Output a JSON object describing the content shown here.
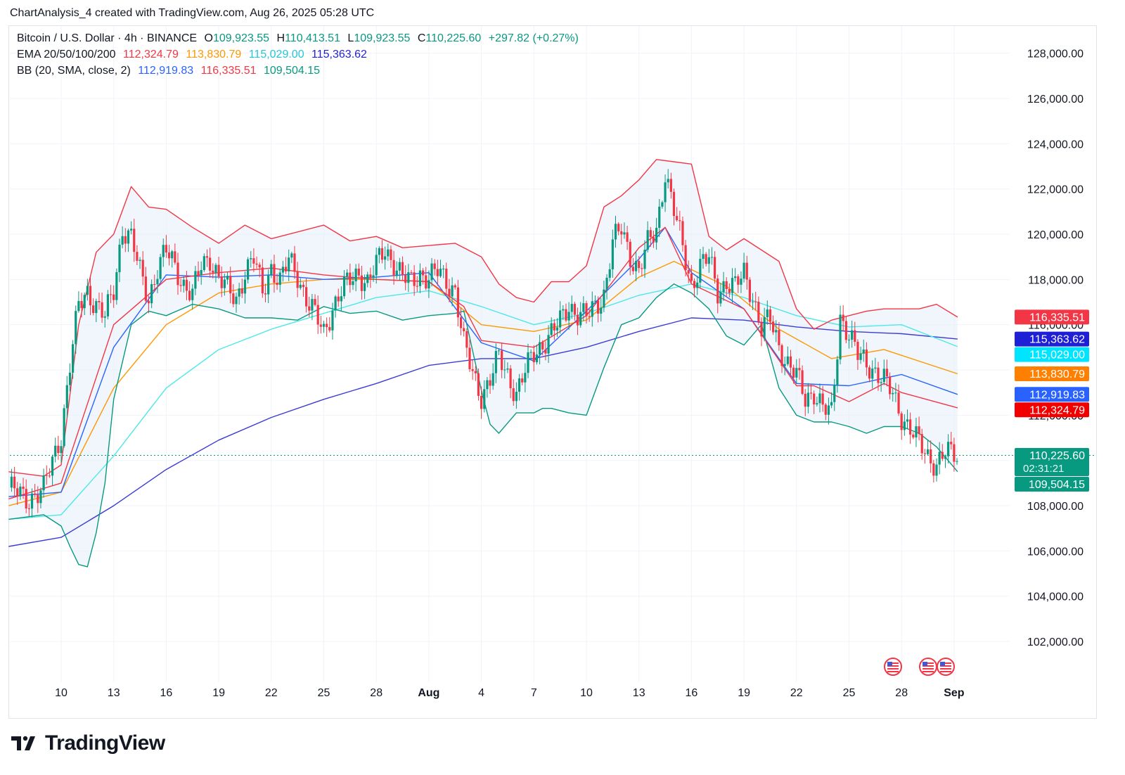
{
  "header": {
    "text": "ChartAnalysis_4 created with TradingView.com, Aug 26, 2025 05:28 UTC"
  },
  "legend": {
    "symbol": "Bitcoin / U.S. Dollar · 4h · BINANCE",
    "o_label": "O",
    "o_value": "109,923.55",
    "h_label": "H",
    "h_value": "110,413.51",
    "l_label": "L",
    "l_value": "109,923.55",
    "c_label": "C",
    "c_value": "110,225.60",
    "change": "+297.82 (+0.27%)",
    "ema_label": "EMA 20/50/100/200",
    "ema20": "112,324.79",
    "ema50": "113,830.79",
    "ema100": "115,029.00",
    "ema200": "115,363.62",
    "bb_label": "BB (20, SMA, close, 2)",
    "bb_basis": "112,919.83",
    "bb_upper": "116,335.51",
    "bb_lower": "109,504.15"
  },
  "colors": {
    "up": "#089981",
    "down": "#f23645",
    "ema20": "#f23645",
    "ema50": "#ff9800",
    "ema100": "#4de8e8",
    "ema200": "#3b3bd6",
    "bb_basis": "#2962ff",
    "bb_upper": "#f23645",
    "bb_lower": "#089981",
    "bb_fill": "#e3effa",
    "grid": "#f0f3fa",
    "axis_text": "#131722"
  },
  "price_labels": [
    {
      "text": "116,335.51",
      "value": 116335.51,
      "color": "#f23645"
    },
    {
      "text": "115,363.62",
      "value": 115363.62,
      "color": "#1f1fd6"
    },
    {
      "text": "115,029.00",
      "value": 115029.0,
      "color": "#00e5ff"
    },
    {
      "text": "113,830.79",
      "value": 113830.79,
      "color": "#ff8000"
    },
    {
      "text": "112,919.83",
      "value": 112919.83,
      "color": "#2962ff"
    },
    {
      "text": "112,324.79",
      "value": 112324.79,
      "color": "#f20000"
    },
    {
      "text": "110,225.60",
      "value": 110225.6,
      "color": "#089981",
      "countdown": "02:31:21"
    },
    {
      "text": "109,504.15",
      "value": 109504.15,
      "color": "#089981"
    }
  ],
  "chart_data": {
    "type": "line",
    "title": "Bitcoin / U.S. Dollar · 4h · BINANCE",
    "xlabel": "",
    "ylabel": "",
    "ylim": [
      100200,
      129200
    ],
    "y_ticks": [
      102000,
      104000,
      106000,
      108000,
      110000,
      112000,
      114000,
      116000,
      118000,
      120000,
      122000,
      124000,
      126000,
      128000
    ],
    "y_tick_labels": [
      "102,000.00",
      "104,000.00",
      "106,000.00",
      "108,000.00",
      "110,000.00",
      "112,000.00",
      "114,000.00",
      "116,000.00",
      "118,000.00",
      "120,000.00",
      "122,000.00",
      "124,000.00",
      "126,000.00",
      "128,000.00"
    ],
    "x_tick_labels": [
      "10",
      "13",
      "16",
      "19",
      "22",
      "25",
      "28",
      "Aug",
      "4",
      "7",
      "10",
      "13",
      "16",
      "19",
      "22",
      "25",
      "28",
      "Sep"
    ],
    "grid": true,
    "legend": "top-left",
    "x_days": [
      0,
      3,
      6,
      9,
      12,
      15,
      18,
      21,
      24,
      27,
      30,
      33,
      36,
      39,
      42,
      45,
      48,
      51
    ],
    "last_price": 110225.6,
    "series": [
      {
        "name": "Bitcoin / U.S. Dollar",
        "x": [
          -3,
          -2,
          -1,
          0,
          0.5,
          1,
          1.5,
          2,
          2.5,
          3,
          3.5,
          4,
          4.5,
          5,
          5.5,
          6,
          6.5,
          7,
          7.5,
          8,
          8.5,
          9,
          9.5,
          10,
          10.5,
          11,
          11.5,
          12,
          12.5,
          13,
          13.5,
          14,
          14.5,
          15,
          15.5,
          16,
          16.5,
          17,
          17.5,
          18,
          18.5,
          19,
          19.5,
          20,
          20.5,
          21,
          21.5,
          22,
          22.5,
          23,
          23.5,
          24,
          24.5,
          25,
          25.5,
          26,
          26.5,
          27,
          27.5,
          28,
          28.5,
          29,
          29.5,
          30,
          30.5,
          31,
          31.5,
          32,
          32.5,
          33,
          33.5,
          34,
          34.5,
          35,
          35.5,
          36,
          36.5,
          37,
          37.5,
          38,
          38.5,
          39,
          39.5,
          40,
          40.5,
          41,
          41.5,
          42,
          42.5,
          43,
          43.5,
          44,
          44.5,
          45,
          45.5,
          46,
          46.5,
          47,
          47.5,
          48,
          48.5,
          49,
          49.5,
          50,
          50.5,
          51,
          51.2
        ],
        "values": [
          108800,
          108300,
          108700,
          111200,
          114200,
          116800,
          117500,
          116900,
          116300,
          117500,
          120300,
          119800,
          118300,
          117200,
          118500,
          119200,
          118600,
          117800,
          117300,
          118600,
          119000,
          118100,
          117500,
          117100,
          118400,
          118900,
          117400,
          118600,
          117900,
          118800,
          118200,
          117200,
          116400,
          115600,
          116800,
          117500,
          117900,
          118300,
          117900,
          118600,
          119300,
          118800,
          118100,
          117800,
          118300,
          118100,
          118300,
          117900,
          117600,
          115100,
          113800,
          112900,
          113600,
          114500,
          113800,
          113000,
          113900,
          114700,
          115200,
          115600,
          116100,
          116900,
          116500,
          116300,
          116800,
          117400,
          119600,
          120200,
          119100,
          118400,
          119500,
          120200,
          122800,
          121000,
          119400,
          117800,
          118600,
          118900,
          117500,
          117900,
          117600,
          118300,
          117300,
          115800,
          116200,
          115100,
          114300,
          113700,
          112700,
          113100,
          112300,
          112000,
          116400,
          115600,
          114600,
          114300,
          114000,
          113500,
          112900,
          112000,
          111400,
          110700,
          110200,
          109900,
          110300,
          110225.6,
          110225.6
        ],
        "color": "#089981"
      },
      {
        "name": "EMA 20",
        "x": [
          -3,
          0,
          3,
          6,
          9,
          12,
          15,
          18,
          21,
          23,
          24,
          27,
          30,
          33,
          34.5,
          36,
          39,
          42,
          43,
          45,
          47,
          48,
          51.2
        ],
        "values": [
          108300,
          109000,
          116000,
          118000,
          118300,
          118500,
          118200,
          118000,
          117900,
          116800,
          115300,
          115000,
          116400,
          119400,
          120300,
          117800,
          116700,
          113300,
          113300,
          112600,
          113400,
          113000,
          112324.79
        ],
        "color": "#f23645"
      },
      {
        "name": "EMA 50",
        "x": [
          -3,
          0,
          3,
          6,
          9,
          12,
          15,
          18,
          21,
          24,
          27,
          30,
          33,
          35,
          38,
          41,
          44,
          47,
          51.2
        ],
        "values": [
          108000,
          108600,
          113200,
          116000,
          117400,
          117800,
          118000,
          118000,
          117900,
          116000,
          115700,
          116200,
          118100,
          118800,
          117700,
          115800,
          114500,
          114900,
          113830.79
        ],
        "color": "#ff9800"
      },
      {
        "name": "EMA 100",
        "x": [
          -3,
          0,
          3,
          6,
          9,
          12,
          15,
          18,
          21,
          24,
          27,
          30,
          33,
          36,
          39,
          42,
          45,
          48,
          51.2
        ],
        "values": [
          107400,
          107600,
          110200,
          113200,
          114900,
          115800,
          116500,
          117200,
          117500,
          116800,
          116000,
          116500,
          117300,
          117800,
          117200,
          116400,
          115900,
          116000,
          115029.0
        ],
        "color": "#4de8e8"
      },
      {
        "name": "EMA 200",
        "x": [
          -3,
          0,
          3,
          6,
          9,
          12,
          15,
          18,
          21,
          24,
          27,
          30,
          33,
          36,
          39,
          42,
          45,
          48,
          51.2
        ],
        "values": [
          106200,
          106600,
          108000,
          109600,
          110900,
          111900,
          112700,
          113400,
          114200,
          114500,
          114500,
          115000,
          115700,
          116300,
          116200,
          115900,
          115700,
          115600,
          115363.62
        ],
        "color": "#3b3bd6"
      },
      {
        "name": "BB basis",
        "x": [
          -3,
          0,
          3,
          6,
          9,
          12,
          15,
          18,
          21,
          24,
          27,
          30,
          33,
          34.5,
          36,
          39,
          42,
          45,
          48,
          51.2
        ],
        "values": [
          108400,
          108600,
          115000,
          118200,
          118100,
          118200,
          118000,
          118100,
          118300,
          115200,
          114400,
          116600,
          118900,
          120300,
          118300,
          116700,
          113400,
          113300,
          113800,
          112919.83
        ],
        "color": "#2962ff"
      },
      {
        "name": "BB upper",
        "x": [
          -3,
          -1,
          0,
          1,
          2,
          3,
          4,
          5,
          6,
          7.5,
          9,
          10.5,
          12,
          13.5,
          15,
          16.5,
          18,
          19.5,
          21,
          22.5,
          24,
          25,
          26,
          27,
          28,
          29,
          30,
          31,
          32,
          33,
          34,
          35,
          36,
          37,
          38,
          39,
          40,
          41,
          42,
          43,
          44,
          45,
          46,
          47,
          48,
          49,
          50,
          51.2
        ],
        "values": [
          109500,
          109300,
          109800,
          116000,
          119200,
          120000,
          122100,
          121200,
          121100,
          120300,
          119600,
          120400,
          119800,
          120100,
          120400,
          119700,
          119900,
          119400,
          119500,
          119600,
          119000,
          117800,
          117200,
          117000,
          117900,
          117900,
          118600,
          121200,
          121700,
          122400,
          123300,
          123200,
          123100,
          119900,
          119300,
          119800,
          119300,
          118800,
          116700,
          115800,
          116200,
          116400,
          116600,
          116700,
          116700,
          116700,
          116900,
          116335.51
        ],
        "color": "#f23645"
      },
      {
        "name": "BB lower",
        "x": [
          -3,
          -1,
          0,
          0.5,
          1,
          1.5,
          2,
          2.5,
          3,
          4,
          5,
          6,
          7.5,
          9,
          10.5,
          12,
          13.5,
          15,
          16.5,
          18,
          19.5,
          21,
          22.5,
          23,
          24,
          24.5,
          25,
          26,
          27,
          27.5,
          28,
          29,
          30,
          31,
          32,
          33,
          34,
          35,
          36,
          37,
          38,
          39,
          40,
          41,
          42,
          43,
          44,
          45,
          46,
          47,
          48,
          49,
          50,
          51.2
        ],
        "values": [
          107400,
          107600,
          107100,
          106200,
          105400,
          105300,
          106800,
          109000,
          112700,
          116000,
          116600,
          116400,
          116900,
          116700,
          116300,
          116300,
          116200,
          116800,
          116500,
          116600,
          116200,
          116400,
          116500,
          116600,
          113100,
          111600,
          111200,
          112100,
          112100,
          112300,
          112300,
          112100,
          112000,
          114100,
          116000,
          116300,
          117200,
          117800,
          117400,
          116700,
          115500,
          115100,
          116000,
          113200,
          112000,
          111700,
          111700,
          111500,
          111200,
          111500,
          111500,
          111200,
          110600,
          109504.15
        ],
        "color": "#089981"
      }
    ]
  },
  "footer": {
    "brand": "TradingView"
  }
}
